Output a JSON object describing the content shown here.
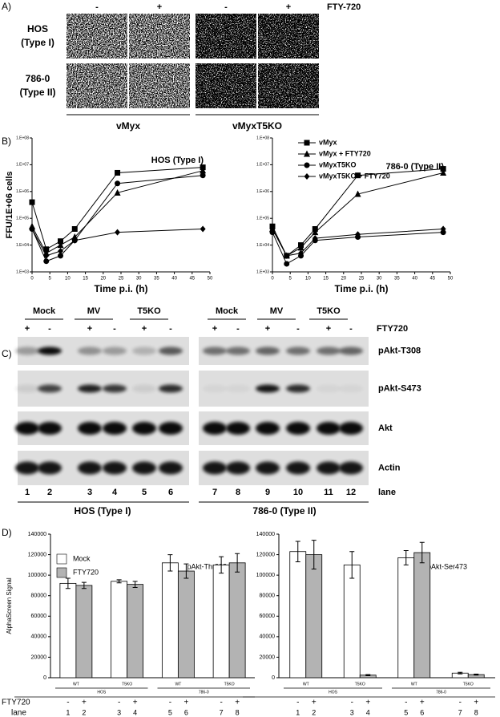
{
  "figure": {
    "panel_a": {
      "label": "A)",
      "signs": [
        "-",
        "+",
        "-",
        "+"
      ],
      "treatment": "FTY-720",
      "rows": [
        [
          "HOS",
          "(Type I)"
        ],
        [
          "786-0",
          "(Type II)"
        ]
      ],
      "groups": [
        "vMyx",
        "vMyxT5KO"
      ]
    },
    "panel_b": {
      "label": "B)"
    },
    "panel_c": {
      "label": "C)",
      "groups": [
        "Mock",
        "MV",
        "T5KO",
        "Mock",
        "MV",
        "T5KO"
      ],
      "signs": [
        "+",
        "-",
        "+",
        "-",
        "+",
        "-",
        "+",
        "-",
        "+",
        "-",
        "+",
        "-"
      ],
      "treatment": "FTY720",
      "rows": [
        "pAkt-T308",
        "pAkt-S473",
        "Akt",
        "Actin"
      ],
      "lanes": [
        1,
        2,
        3,
        4,
        5,
        6,
        7,
        8,
        9,
        10,
        11,
        12
      ],
      "lane_label": "lane",
      "cell_lines": [
        "HOS (Type I)",
        "786-0 (Type II)"
      ]
    },
    "panel_d": {
      "label": "D)",
      "treatment": "FTY720",
      "lane_label": "lane"
    }
  },
  "chart_data": [
    {
      "type": "line",
      "title": "HOS (Type I)",
      "xlabel": "Time p.i. (h)",
      "ylabel": "FFU/1E+06 cells",
      "log_y": true,
      "x": [
        0,
        4,
        8,
        12,
        24,
        48
      ],
      "xlim": [
        0,
        50
      ],
      "xticks": [
        0,
        5,
        10,
        15,
        20,
        25,
        30,
        35,
        40,
        45,
        50
      ],
      "ylim": [
        1000,
        100000000
      ],
      "yticks": [
        {
          "value": 1000,
          "label": "1.E+03"
        },
        {
          "value": 10000,
          "label": "1.E+04"
        },
        {
          "value": 100000,
          "label": "1.E+05"
        },
        {
          "value": 1000000,
          "label": "1.E+06"
        },
        {
          "value": 10000000,
          "label": "1.E+07"
        },
        {
          "value": 100000000,
          "label": "1.E+08"
        }
      ],
      "series": [
        {
          "color": "#000000",
          "marker": "square",
          "values": [
            400000,
            7000,
            14000,
            40000,
            5000000,
            8000000
          ]
        },
        {
          "color": "#000000",
          "marker": "triangle",
          "values": [
            50000,
            5000,
            10000,
            20000,
            900000,
            6000000
          ]
        },
        {
          "color": "#000000",
          "marker": "circle",
          "values": [
            40000,
            2500,
            4000,
            15000,
            2000000,
            4000000
          ]
        },
        {
          "color": "#000000",
          "marker": "diamond",
          "values": [
            40000,
            4000,
            6000,
            15000,
            30000,
            40000
          ]
        }
      ]
    },
    {
      "type": "line",
      "title": "786-0 (Type II)",
      "xlabel": "Time p.i. (h)",
      "log_y": true,
      "legend": "upper left",
      "x": [
        0,
        4,
        8,
        12,
        24,
        48
      ],
      "xlim": [
        0,
        50
      ],
      "xticks": [
        0,
        5,
        10,
        15,
        20,
        25,
        30,
        35,
        40,
        45,
        50
      ],
      "ylim": [
        1000,
        100000000
      ],
      "yticks": [
        {
          "value": 1000,
          "label": "1.E+03"
        },
        {
          "value": 10000,
          "label": "1.E+04"
        },
        {
          "value": 100000,
          "label": "1.E+05"
        },
        {
          "value": 1000000,
          "label": "1.E+06"
        },
        {
          "value": 10000000,
          "label": "1.E+07"
        },
        {
          "value": 100000000,
          "label": "1.E+08"
        }
      ],
      "series": [
        {
          "name": "vMyx",
          "color": "#000000",
          "marker": "square",
          "values": [
            50000,
            4000,
            10000,
            40000,
            4000000,
            7000000
          ]
        },
        {
          "name": "vMyx + FTY720",
          "color": "#000000",
          "marker": "triangle",
          "values": [
            40000,
            4000,
            8000,
            30000,
            800000,
            5000000
          ]
        },
        {
          "name": "vMyxT5KO",
          "color": "#000000",
          "marker": "circle",
          "values": [
            30000,
            2000,
            4000,
            15000,
            20000,
            30000
          ]
        },
        {
          "name": "vMyxT5KO + FTY720",
          "color": "#000000",
          "marker": "diamond",
          "values": [
            40000,
            4000,
            5000,
            18000,
            25000,
            40000
          ]
        }
      ]
    },
    {
      "type": "bar",
      "title": "pAkt-Thr308",
      "ylabel": "AlphaScreen Signal",
      "legend": "upper left",
      "categories": [
        "WT",
        "T5KO",
        "WT",
        "T5KO"
      ],
      "group_labels": [
        "HOS",
        "786-0"
      ],
      "ylim": [
        0,
        140000
      ],
      "yticks": [
        0,
        20000,
        40000,
        60000,
        80000,
        100000,
        120000,
        140000
      ],
      "series": [
        {
          "name": "Mock",
          "color": "#ffffff",
          "values": [
            92000,
            94000,
            112000,
            110000
          ],
          "errors": [
            5000,
            1500,
            8000,
            8000
          ]
        },
        {
          "name": "FTY720",
          "color": "#b3b3b3",
          "values": [
            90000,
            91000,
            104000,
            112000
          ],
          "errors": [
            3000,
            3000,
            7000,
            9000
          ]
        }
      ],
      "fty_signs": [
        "-",
        "+",
        "-",
        "+",
        "-",
        "+",
        "-",
        "+"
      ],
      "lanes": [
        1,
        2,
        3,
        4,
        5,
        6,
        7,
        8
      ]
    },
    {
      "type": "bar",
      "title": "pAkt-Ser473",
      "categories": [
        "WT",
        "T5KO",
        "WT",
        "T5KO"
      ],
      "group_labels": [
        "HOS",
        "786-0"
      ],
      "ylim": [
        0,
        140000
      ],
      "yticks": [
        0,
        20000,
        40000,
        60000,
        80000,
        100000,
        120000,
        140000
      ],
      "series": [
        {
          "color": "#ffffff",
          "values": [
            123000,
            110000,
            117000,
            4500
          ],
          "errors": [
            10000,
            13000,
            7000,
            800
          ]
        },
        {
          "color": "#b3b3b3",
          "values": [
            120000,
            2500,
            122000,
            3000
          ],
          "errors": [
            14000,
            500,
            10000,
            500
          ]
        }
      ],
      "fty_signs": [
        "-",
        "+",
        "-",
        "+",
        "-",
        "+",
        "-",
        "+"
      ],
      "lanes": [
        1,
        2,
        3,
        4,
        5,
        6,
        7,
        8
      ]
    }
  ]
}
